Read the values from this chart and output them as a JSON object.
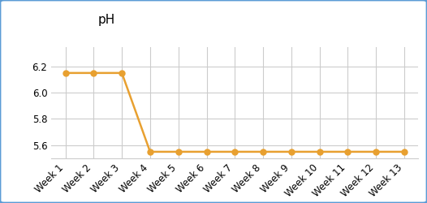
{
  "title": "pH",
  "weeks": [
    "Week 1",
    "Week 2",
    "Week 3",
    "Week 4",
    "Week 5",
    "Week 6",
    "Week 7",
    "Week 8",
    "Week 9",
    "Week 10",
    "Week 11",
    "Week 12",
    "Week 13"
  ],
  "values": [
    6.15,
    6.15,
    6.15,
    5.55,
    5.55,
    5.55,
    5.55,
    5.55,
    5.55,
    5.55,
    5.55,
    5.55,
    5.55
  ],
  "line_color": "#E8A030",
  "marker_color": "#E8A030",
  "ylim": [
    5.5,
    6.35
  ],
  "yticks": [
    5.6,
    5.8,
    6.0,
    6.2
  ],
  "grid_color": "#CCCCCC",
  "background_color": "#FFFFFF",
  "border_color": "#5B9BD5",
  "tab_color": "#FFFFFF",
  "title_fontsize": 11,
  "tick_fontsize": 8.5,
  "marker_size": 5,
  "line_width": 1.8
}
